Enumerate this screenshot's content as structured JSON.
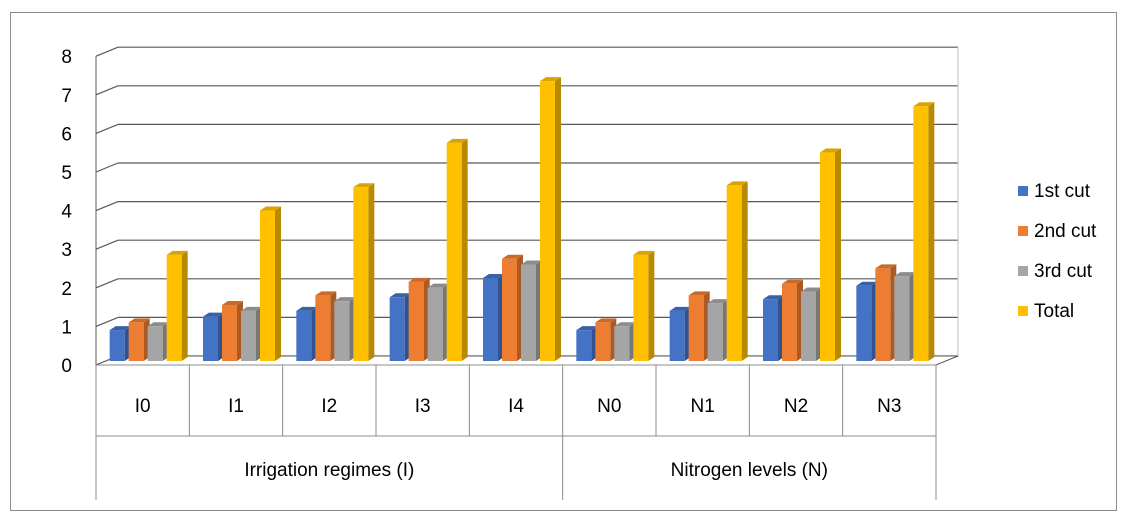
{
  "chart_data": {
    "type": "bar",
    "title": "",
    "xlabel": "",
    "ylabel": "",
    "ylim": [
      0,
      8
    ],
    "yticks": [
      "0",
      "1",
      "2",
      "3",
      "4",
      "5",
      "6",
      "7",
      "8"
    ],
    "grid": true,
    "legend_position": "right",
    "groups": [
      {
        "label": "Irrigation regimes (I)",
        "categories": [
          "I0",
          "I1",
          "I2",
          "I3",
          "I4"
        ]
      },
      {
        "label": "Nitrogen levels (N)",
        "categories": [
          "N0",
          "N1",
          "N2",
          "N3"
        ]
      }
    ],
    "categories": [
      "I0",
      "I1",
      "I2",
      "I3",
      "I4",
      "N0",
      "N1",
      "N2",
      "N3"
    ],
    "series": [
      {
        "name": "1st cut",
        "color": "#4472C4",
        "values": [
          0.8,
          1.15,
          1.3,
          1.65,
          2.15,
          0.8,
          1.3,
          1.6,
          1.95
        ]
      },
      {
        "name": "2nd cut",
        "color": "#ED7D31",
        "values": [
          1.0,
          1.45,
          1.7,
          2.05,
          2.65,
          1.0,
          1.7,
          2.0,
          2.4
        ]
      },
      {
        "name": "3rd cut",
        "color": "#A5A5A5",
        "values": [
          0.9,
          1.3,
          1.55,
          1.9,
          2.5,
          0.9,
          1.5,
          1.8,
          2.2
        ]
      },
      {
        "name": "Total",
        "color": "#FFC000",
        "values": [
          2.75,
          3.9,
          4.5,
          5.65,
          7.25,
          2.75,
          4.55,
          5.4,
          6.6
        ]
      }
    ]
  }
}
